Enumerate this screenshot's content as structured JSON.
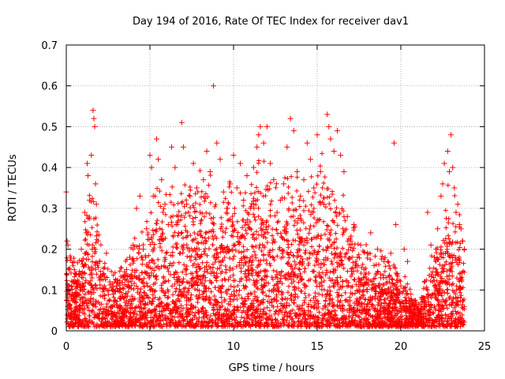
{
  "chart_data": {
    "type": "scatter",
    "title": "Day 194 of 2016, Rate Of TEC Index for receiver dav1",
    "xlabel": "GPS time / hours",
    "ylabel": "ROTI / TECUs",
    "xlim": [
      0,
      25
    ],
    "ylim": [
      0,
      0.7
    ],
    "xticks": [
      0,
      5,
      10,
      15,
      20,
      25
    ],
    "xtick_labels": [
      "0",
      "5",
      "10",
      "15",
      "20",
      "25"
    ],
    "yticks": [
      0,
      0.1,
      0.2,
      0.3,
      0.4,
      0.5,
      0.6,
      0.7
    ],
    "ytick_labels": [
      "0",
      "0.1",
      "0.2",
      "0.3",
      "0.4",
      "0.5",
      "0.6",
      "0.7"
    ],
    "grid": true,
    "marker": "+",
    "series": [
      {
        "name": "ROTI",
        "color": "#ff0000",
        "points": [
          [
            0.0,
            0.34
          ],
          [
            0.05,
            0.22
          ],
          [
            0.1,
            0.21
          ],
          [
            0.15,
            0.06
          ],
          [
            0.2,
            0.15
          ],
          [
            0.3,
            0.08
          ],
          [
            0.4,
            0.12
          ],
          [
            0.5,
            0.05
          ],
          [
            0.6,
            0.14
          ],
          [
            0.7,
            0.09
          ],
          [
            0.8,
            0.11
          ],
          [
            0.9,
            0.2
          ],
          [
            1.0,
            0.13
          ],
          [
            1.1,
            0.29
          ],
          [
            1.2,
            0.24
          ],
          [
            1.25,
            0.41
          ],
          [
            1.3,
            0.38
          ],
          [
            1.4,
            0.32
          ],
          [
            1.5,
            0.43
          ],
          [
            1.55,
            0.2
          ],
          [
            1.6,
            0.54
          ],
          [
            1.65,
            0.52
          ],
          [
            1.7,
            0.5
          ],
          [
            1.75,
            0.36
          ],
          [
            1.8,
            0.31
          ],
          [
            1.9,
            0.22
          ],
          [
            2.0,
            0.17
          ],
          [
            2.2,
            0.14
          ],
          [
            2.4,
            0.19
          ],
          [
            2.6,
            0.12
          ],
          [
            2.8,
            0.09
          ],
          [
            3.0,
            0.11
          ],
          [
            3.2,
            0.08
          ],
          [
            3.4,
            0.13
          ],
          [
            3.6,
            0.15
          ],
          [
            3.8,
            0.18
          ],
          [
            4.0,
            0.21
          ],
          [
            4.2,
            0.3
          ],
          [
            4.4,
            0.33
          ],
          [
            4.6,
            0.2
          ],
          [
            4.8,
            0.25
          ],
          [
            5.0,
            0.43
          ],
          [
            5.1,
            0.4
          ],
          [
            5.2,
            0.33
          ],
          [
            5.4,
            0.47
          ],
          [
            5.5,
            0.42
          ],
          [
            5.7,
            0.37
          ],
          [
            5.9,
            0.31
          ],
          [
            6.1,
            0.26
          ],
          [
            6.3,
            0.45
          ],
          [
            6.5,
            0.4
          ],
          [
            6.7,
            0.28
          ],
          [
            6.9,
            0.51
          ],
          [
            7.0,
            0.45
          ],
          [
            7.2,
            0.31
          ],
          [
            7.4,
            0.33
          ],
          [
            7.6,
            0.41
          ],
          [
            7.8,
            0.35
          ],
          [
            8.0,
            0.29
          ],
          [
            8.2,
            0.37
          ],
          [
            8.4,
            0.44
          ],
          [
            8.6,
            0.39
          ],
          [
            8.8,
            0.6
          ],
          [
            9.0,
            0.46
          ],
          [
            9.2,
            0.42
          ],
          [
            9.4,
            0.34
          ],
          [
            9.6,
            0.3
          ],
          [
            9.8,
            0.36
          ],
          [
            10.0,
            0.43
          ],
          [
            10.2,
            0.35
          ],
          [
            10.4,
            0.41
          ],
          [
            10.6,
            0.32
          ],
          [
            10.8,
            0.38
          ],
          [
            11.0,
            0.3
          ],
          [
            11.2,
            0.4
          ],
          [
            11.4,
            0.45
          ],
          [
            11.5,
            0.48
          ],
          [
            11.6,
            0.5
          ],
          [
            11.8,
            0.46
          ],
          [
            12.0,
            0.5
          ],
          [
            12.2,
            0.41
          ],
          [
            12.4,
            0.37
          ],
          [
            12.6,
            0.29
          ],
          [
            12.8,
            0.32
          ],
          [
            13.0,
            0.36
          ],
          [
            13.2,
            0.45
          ],
          [
            13.4,
            0.52
          ],
          [
            13.6,
            0.49
          ],
          [
            13.8,
            0.39
          ],
          [
            14.0,
            0.33
          ],
          [
            14.2,
            0.37
          ],
          [
            14.4,
            0.46
          ],
          [
            14.6,
            0.42
          ],
          [
            14.8,
            0.35
          ],
          [
            15.0,
            0.48
          ],
          [
            15.2,
            0.39
          ],
          [
            15.4,
            0.31
          ],
          [
            15.6,
            0.53
          ],
          [
            15.7,
            0.5
          ],
          [
            15.8,
            0.47
          ],
          [
            16.0,
            0.44
          ],
          [
            16.2,
            0.49
          ],
          [
            16.4,
            0.43
          ],
          [
            16.6,
            0.39
          ],
          [
            16.8,
            0.28
          ],
          [
            17.0,
            0.22
          ],
          [
            17.2,
            0.26
          ],
          [
            17.4,
            0.18
          ],
          [
            17.6,
            0.21
          ],
          [
            17.8,
            0.15
          ],
          [
            18.0,
            0.19
          ],
          [
            18.2,
            0.24
          ],
          [
            18.4,
            0.16
          ],
          [
            18.6,
            0.2
          ],
          [
            18.8,
            0.13
          ],
          [
            19.0,
            0.17
          ],
          [
            19.2,
            0.12
          ],
          [
            19.4,
            0.19
          ],
          [
            19.6,
            0.46
          ],
          [
            19.7,
            0.26
          ],
          [
            19.8,
            0.14
          ],
          [
            20.0,
            0.11
          ],
          [
            20.2,
            0.2
          ],
          [
            20.4,
            0.17
          ],
          [
            20.6,
            0.09
          ],
          [
            20.8,
            0.06
          ],
          [
            21.0,
            0.05
          ],
          [
            21.2,
            0.04
          ],
          [
            21.4,
            0.08
          ],
          [
            21.6,
            0.29
          ],
          [
            21.8,
            0.21
          ],
          [
            22.0,
            0.18
          ],
          [
            22.2,
            0.25
          ],
          [
            22.4,
            0.33
          ],
          [
            22.5,
            0.36
          ],
          [
            22.6,
            0.41
          ],
          [
            22.8,
            0.44
          ],
          [
            22.9,
            0.39
          ],
          [
            23.0,
            0.48
          ],
          [
            23.1,
            0.4
          ],
          [
            23.2,
            0.35
          ],
          [
            23.3,
            0.29
          ],
          [
            23.4,
            0.31
          ],
          [
            23.5,
            0.26
          ],
          [
            23.6,
            0.25
          ],
          [
            23.7,
            0.22
          ],
          [
            23.8,
            0.2
          ]
        ]
      }
    ]
  }
}
